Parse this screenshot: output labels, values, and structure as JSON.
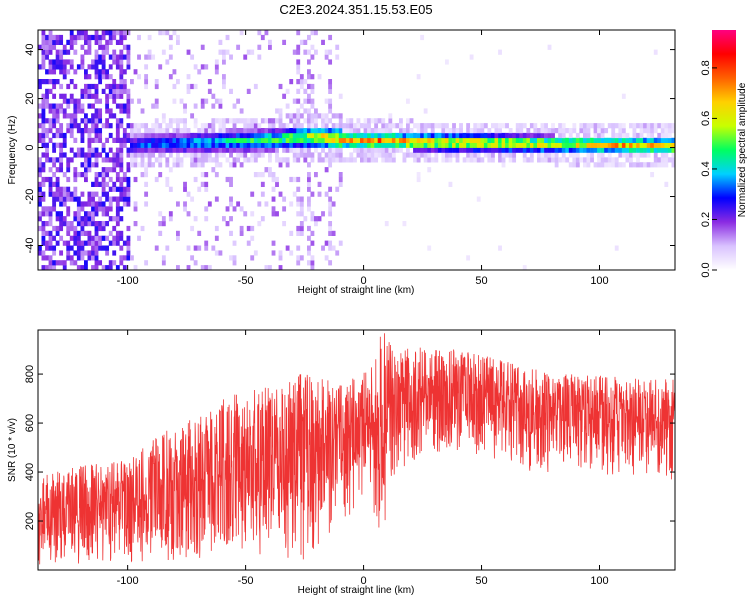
{
  "figure": {
    "title": "C2E3.2024.351.15.53.E05"
  },
  "chart_data": [
    {
      "type": "heatmap",
      "xlabel": "Height of straight line (km)",
      "ylabel": "Frequency (Hz)",
      "xlim": [
        -138,
        132
      ],
      "ylim": [
        -50,
        48
      ],
      "xticks": [
        -100,
        -50,
        0,
        50,
        100
      ],
      "yticks": [
        -40,
        -20,
        0,
        20,
        40
      ],
      "colorbar": {
        "label": "Normalized spectral amplitude",
        "range": [
          0.0,
          0.95
        ],
        "ticks": [
          0.0,
          0.2,
          0.4,
          0.6,
          0.8
        ],
        "colors": [
          "#ffffff",
          "#d9c2ff",
          "#8a2be2",
          "#0000ff",
          "#00d0ff",
          "#00ff60",
          "#c8ff00",
          "#ffd000",
          "#ff6000",
          "#ff0000",
          "#ff0080"
        ]
      },
      "ridge": [
        {
          "x": -100,
          "freq": 0.0,
          "amp": 0.35
        },
        {
          "x": -90,
          "freq": 0.5,
          "amp": 0.4
        },
        {
          "x": -75,
          "freq": 1.0,
          "amp": 0.45
        },
        {
          "x": -60,
          "freq": 1.5,
          "amp": 0.5
        },
        {
          "x": -45,
          "freq": 2.0,
          "amp": 0.55
        },
        {
          "x": -30,
          "freq": 3.0,
          "amp": 0.65
        },
        {
          "x": -20,
          "freq": 3.5,
          "amp": 0.75
        },
        {
          "x": -10,
          "freq": 2.5,
          "amp": 0.85
        },
        {
          "x": 0,
          "freq": 2.0,
          "amp": 0.9
        },
        {
          "x": 20,
          "freq": 1.5,
          "amp": 0.85
        },
        {
          "x": 50,
          "freq": 1.0,
          "amp": 0.8
        },
        {
          "x": 80,
          "freq": 0.5,
          "amp": 0.75
        },
        {
          "x": 110,
          "freq": 0.0,
          "amp": 0.8
        },
        {
          "x": 132,
          "freq": -0.5,
          "amp": 0.85
        }
      ]
    },
    {
      "type": "line",
      "xlabel": "Height of straight line (km)",
      "ylabel": "SNR (10 * v/v)",
      "xlim": [
        -138,
        132
      ],
      "ylim": [
        0,
        980
      ],
      "xticks": [
        -100,
        -50,
        0,
        50,
        100
      ],
      "yticks": [
        200,
        400,
        600,
        800
      ],
      "series": [
        {
          "color": "#ee3333",
          "envelope": [
            {
              "x": -138,
              "low": 10,
              "high": 390
            },
            {
              "x": -120,
              "low": 20,
              "high": 430
            },
            {
              "x": -100,
              "low": 30,
              "high": 450
            },
            {
              "x": -80,
              "low": 40,
              "high": 600
            },
            {
              "x": -60,
              "low": 50,
              "high": 700
            },
            {
              "x": -40,
              "low": 60,
              "high": 760
            },
            {
              "x": -25,
              "low": 30,
              "high": 820
            },
            {
              "x": -10,
              "low": 150,
              "high": 760
            },
            {
              "x": 0,
              "low": 280,
              "high": 800
            },
            {
              "x": 8,
              "low": 130,
              "high": 980
            },
            {
              "x": 15,
              "low": 400,
              "high": 900
            },
            {
              "x": 30,
              "low": 480,
              "high": 920
            },
            {
              "x": 50,
              "low": 470,
              "high": 880
            },
            {
              "x": 70,
              "low": 400,
              "high": 830
            },
            {
              "x": 90,
              "low": 400,
              "high": 800
            },
            {
              "x": 110,
              "low": 380,
              "high": 790
            },
            {
              "x": 132,
              "low": 350,
              "high": 780
            }
          ]
        }
      ]
    }
  ]
}
